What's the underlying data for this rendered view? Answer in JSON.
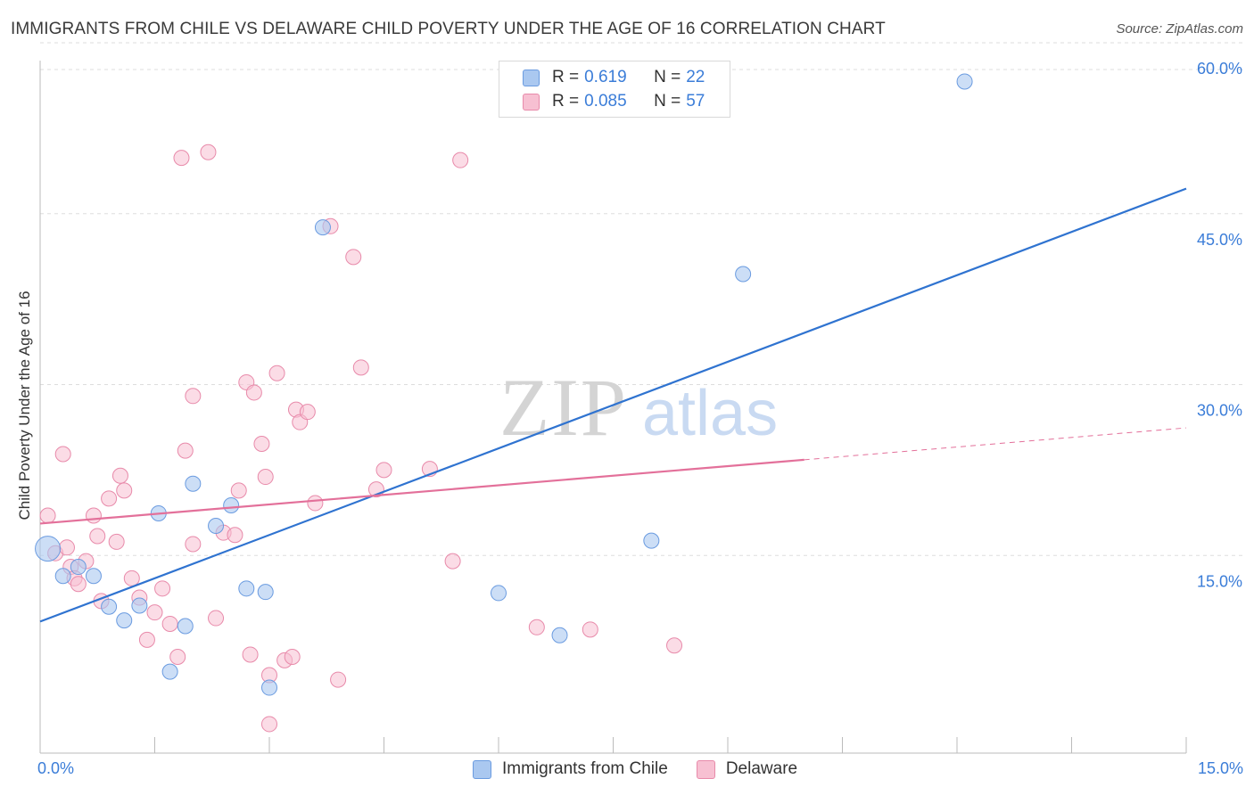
{
  "title": "IMMIGRANTS FROM CHILE VS DELAWARE CHILD POVERTY UNDER THE AGE OF 16 CORRELATION CHART",
  "source": "Source: ZipAtlas.com",
  "watermark": {
    "zip": "ZIP",
    "atlas": "atlas"
  },
  "legend": {
    "rows": [
      {
        "r_label": "R =",
        "r_value": "0.619",
        "n_label": "N =",
        "n_value": "22"
      },
      {
        "r_label": "R =",
        "r_value": "0.085",
        "n_label": "N =",
        "n_value": "57"
      }
    ]
  },
  "bottom_legend": {
    "series1": "Immigrants from Chile",
    "series2": "Delaware"
  },
  "colors": {
    "blue_fill": "#aac8f0",
    "blue_stroke": "#6a9be0",
    "blue_line": "#2f73d0",
    "pink_fill": "#f7c0d2",
    "pink_stroke": "#e88aaa",
    "pink_line": "#e3709a",
    "grid": "#dddddd",
    "tick_label": "#3b7dd8"
  },
  "chart_data": {
    "type": "scatter",
    "title": "IMMIGRANTS FROM CHILE VS DELAWARE CHILD POVERTY UNDER THE AGE OF 16 CORRELATION CHART",
    "xlabel": "",
    "ylabel": "Child Poverty Under the Age of 16",
    "xlim": [
      0,
      15
    ],
    "ylim": [
      0,
      60
    ],
    "x_tick_labels": [
      "0.0%",
      "15.0%"
    ],
    "y_ticks": [
      15,
      30,
      45,
      60
    ],
    "y_tick_labels": [
      "15.0%",
      "30.0%",
      "45.0%",
      "60.0%"
    ],
    "grid": true,
    "legend_position": "top-center",
    "series": [
      {
        "name": "Immigrants from Chile",
        "color": "#6a9be0",
        "points": [
          [
            0.1,
            15.6
          ],
          [
            0.3,
            13.2
          ],
          [
            0.5,
            14.0
          ],
          [
            0.7,
            13.2
          ],
          [
            0.9,
            10.5
          ],
          [
            1.1,
            9.3
          ],
          [
            1.3,
            10.6
          ],
          [
            1.55,
            18.7
          ],
          [
            1.7,
            4.8
          ],
          [
            1.9,
            8.8
          ],
          [
            2.0,
            21.3
          ],
          [
            2.3,
            17.6
          ],
          [
            2.5,
            19.4
          ],
          [
            2.7,
            12.1
          ],
          [
            2.95,
            11.8
          ],
          [
            3.0,
            3.4
          ],
          [
            3.7,
            43.8
          ],
          [
            6.0,
            11.7
          ],
          [
            6.8,
            8.0
          ],
          [
            8.0,
            16.3
          ],
          [
            9.2,
            39.7
          ],
          [
            12.1,
            56.6
          ]
        ],
        "trendline": {
          "x": [
            0,
            15
          ],
          "y": [
            9.2,
            47.2
          ]
        }
      },
      {
        "name": "Delaware",
        "color": "#e88aaa",
        "points": [
          [
            0.1,
            18.5
          ],
          [
            0.2,
            15.2
          ],
          [
            0.3,
            23.9
          ],
          [
            0.35,
            15.7
          ],
          [
            0.4,
            14.0
          ],
          [
            0.45,
            13.0
          ],
          [
            0.5,
            12.5
          ],
          [
            0.6,
            14.5
          ],
          [
            0.7,
            18.5
          ],
          [
            0.75,
            16.7
          ],
          [
            0.8,
            11.0
          ],
          [
            0.9,
            20.0
          ],
          [
            1.0,
            16.2
          ],
          [
            1.05,
            22.0
          ],
          [
            1.1,
            20.7
          ],
          [
            1.2,
            13.0
          ],
          [
            1.3,
            11.3
          ],
          [
            1.4,
            7.6
          ],
          [
            1.5,
            10.0
          ],
          [
            1.6,
            12.1
          ],
          [
            1.7,
            9.0
          ],
          [
            1.8,
            6.1
          ],
          [
            1.85,
            49.9
          ],
          [
            1.9,
            24.2
          ],
          [
            2.0,
            16.0
          ],
          [
            2.0,
            29.0
          ],
          [
            2.2,
            50.4
          ],
          [
            2.3,
            9.5
          ],
          [
            2.4,
            17.0
          ],
          [
            2.55,
            16.8
          ],
          [
            2.6,
            20.7
          ],
          [
            2.7,
            30.2
          ],
          [
            2.75,
            6.3
          ],
          [
            2.8,
            29.3
          ],
          [
            2.9,
            24.8
          ],
          [
            2.95,
            21.9
          ],
          [
            3.0,
            4.5
          ],
          [
            3.1,
            31.0
          ],
          [
            3.2,
            5.8
          ],
          [
            3.3,
            6.1
          ],
          [
            3.35,
            27.8
          ],
          [
            3.4,
            26.7
          ],
          [
            3.5,
            27.6
          ],
          [
            3.6,
            19.6
          ],
          [
            3.8,
            43.9
          ],
          [
            3.9,
            4.1
          ],
          [
            4.1,
            41.2
          ],
          [
            4.2,
            31.5
          ],
          [
            4.4,
            20.8
          ],
          [
            4.5,
            22.5
          ],
          [
            5.1,
            22.6
          ],
          [
            5.4,
            14.5
          ],
          [
            5.5,
            49.7
          ],
          [
            6.5,
            8.7
          ],
          [
            7.2,
            8.5
          ],
          [
            8.3,
            7.1
          ],
          [
            3.0,
            0.2
          ]
        ],
        "trendline": {
          "x": [
            0,
            15
          ],
          "y": [
            17.8,
            26.2
          ],
          "solid_until_x": 10.0
        }
      }
    ]
  }
}
